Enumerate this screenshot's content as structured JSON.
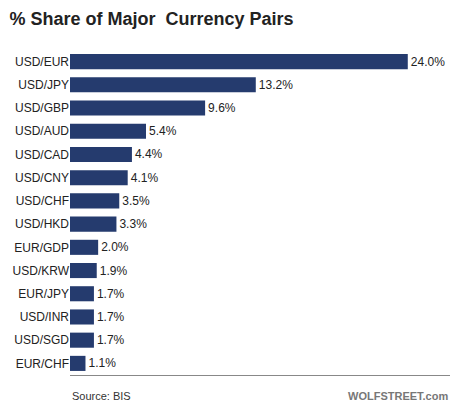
{
  "chart_data": {
    "type": "bar",
    "orientation": "horizontal",
    "title": "% Share of Major  Currency Pairs",
    "categories": [
      "USD/EUR",
      "USD/JPY",
      "USD/GBP",
      "USD/AUD",
      "USD/CAD",
      "USD/CNY",
      "USD/CHF",
      "USD/HKD",
      "EUR/GDP",
      "USD/KRW",
      "EUR/JPY",
      "USD/INR",
      "USD/SGD",
      "EUR/CHF"
    ],
    "values": [
      24.0,
      13.2,
      9.6,
      5.4,
      4.4,
      4.1,
      3.5,
      3.3,
      2.0,
      1.9,
      1.7,
      1.7,
      1.7,
      1.1
    ],
    "value_labels": [
      "24.0%",
      "13.2%",
      "9.6%",
      "5.4%",
      "4.4%",
      "4.1%",
      "3.5%",
      "3.3%",
      "2.0%",
      "1.9%",
      "1.7%",
      "1.7%",
      "1.7%",
      "1.1%"
    ],
    "data_labels": true,
    "color": "#253b6e",
    "xlim": [
      0,
      27
    ],
    "tick_labels": "y",
    "grid": false,
    "annotations": [
      "Source: BIS",
      "WOLFSTREET.com"
    ]
  }
}
